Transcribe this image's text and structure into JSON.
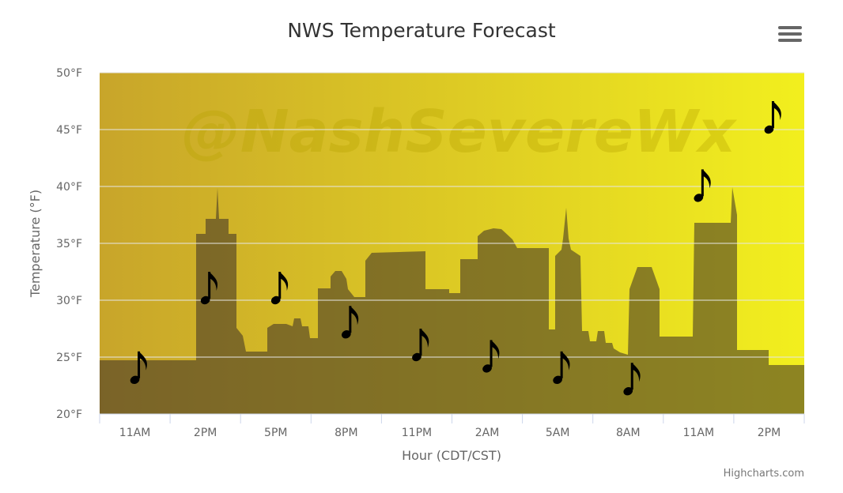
{
  "chart_data": {
    "type": "scatter",
    "title": "NWS Temperature Forecast",
    "xlabel": "Hour (CDT/CST)",
    "ylabel": "Temperature (°F)",
    "categories": [
      "11AM",
      "2PM",
      "5PM",
      "8PM",
      "11PM",
      "2AM",
      "5AM",
      "8AM",
      "11AM",
      "2PM"
    ],
    "ylim": [
      20,
      50
    ],
    "yticks": [
      "20°F",
      "25°F",
      "30°F",
      "35°F",
      "40°F",
      "45°F",
      "50°F"
    ],
    "series": [
      {
        "marker": "music-note-icon",
        "values": [
          23,
          30,
          30,
          27,
          25,
          24,
          23,
          22,
          39,
          45
        ]
      }
    ],
    "grid": true,
    "legend": "none",
    "watermark": "@NashSevereWx",
    "colors": {
      "plot_bg_left": "#c8a52a",
      "plot_bg_right": "#f2ef1e",
      "skyline_fill": "#3b2d26",
      "gridline": "#e6e6e6",
      "marker": "#000000"
    }
  },
  "credits": "Highcharts.com"
}
